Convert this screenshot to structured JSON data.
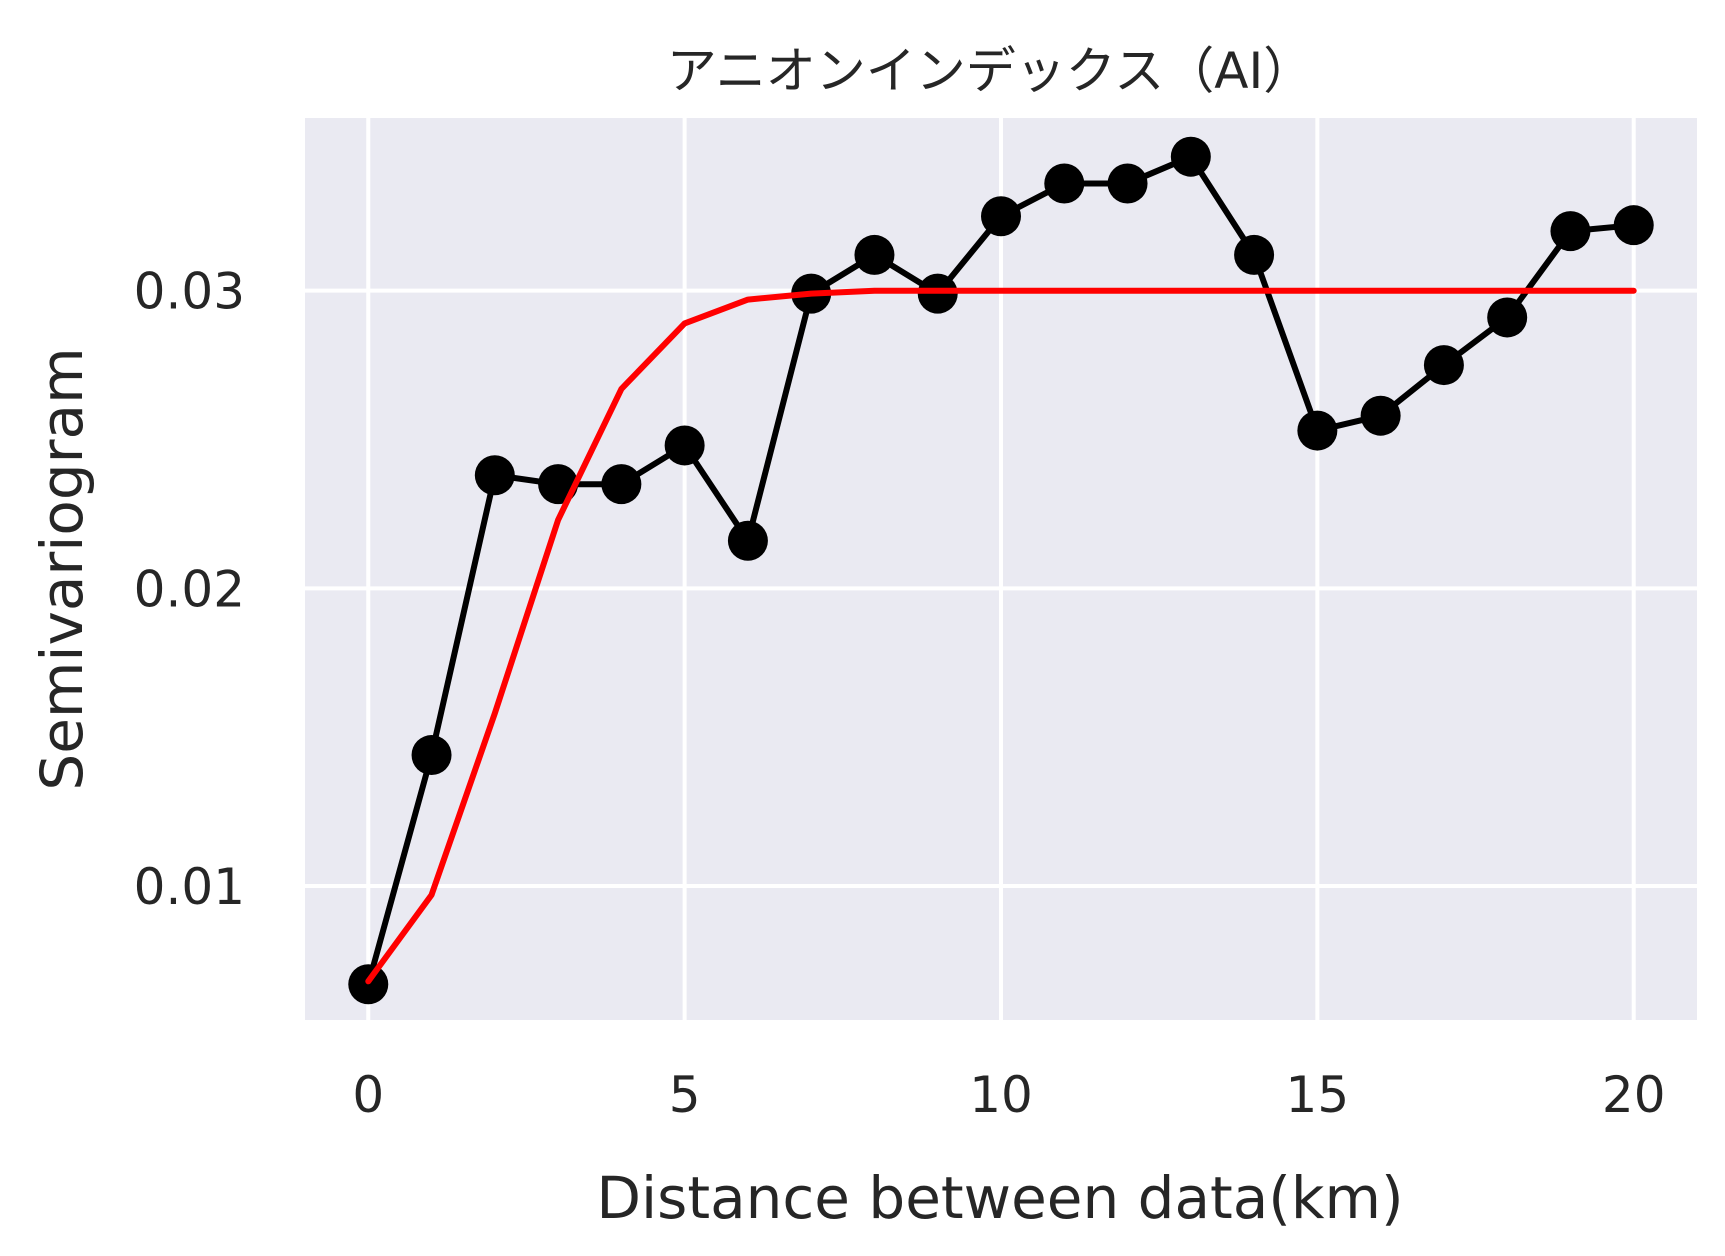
{
  "chart_data": {
    "type": "line",
    "title": "アニオンインデックス（AI）",
    "xlabel": "Distance between data(km)",
    "ylabel": "Semivariogram",
    "xlim": [
      -1,
      21
    ],
    "ylim": [
      0.0055,
      0.0358
    ],
    "xticks": [
      0,
      5,
      10,
      15,
      20
    ],
    "yticks": [
      0.01,
      0.02,
      0.03
    ],
    "x_tick_labels": [
      "0",
      "5",
      "10",
      "15",
      "20"
    ],
    "y_tick_labels": [
      "0.01",
      "0.02",
      "0.03"
    ],
    "grid": true,
    "colors": {
      "background": "#eaeaf2",
      "grid": "#ffffff",
      "empirical": "#000000",
      "model": "#ff0000"
    },
    "series": [
      {
        "name": "",
        "style": "line-marker",
        "color": "#000000",
        "x": [
          0,
          1,
          2,
          3,
          4,
          5,
          6,
          7,
          8,
          9,
          10,
          11,
          12,
          13,
          14,
          15,
          16,
          17,
          18,
          19,
          20
        ],
        "values": [
          0.0067,
          0.0144,
          0.0238,
          0.0235,
          0.0235,
          0.0248,
          0.0216,
          0.0299,
          0.0312,
          0.0299,
          0.0325,
          0.0336,
          0.0336,
          0.0345,
          0.0312,
          0.0253,
          0.0258,
          0.0275,
          0.0291,
          0.032,
          0.0322
        ]
      },
      {
        "name": "",
        "style": "line",
        "color": "#ff0000",
        "x": [
          0,
          1,
          2,
          3,
          4,
          5,
          6,
          7,
          8,
          9,
          10,
          11,
          12,
          13,
          14,
          15,
          16,
          17,
          18,
          19,
          20
        ],
        "values": [
          0.0068,
          0.0097,
          0.0158,
          0.0223,
          0.0267,
          0.0289,
          0.0297,
          0.0299,
          0.03,
          0.03,
          0.03,
          0.03,
          0.03,
          0.03,
          0.03,
          0.03,
          0.03,
          0.03,
          0.03,
          0.03,
          0.03
        ]
      }
    ]
  }
}
